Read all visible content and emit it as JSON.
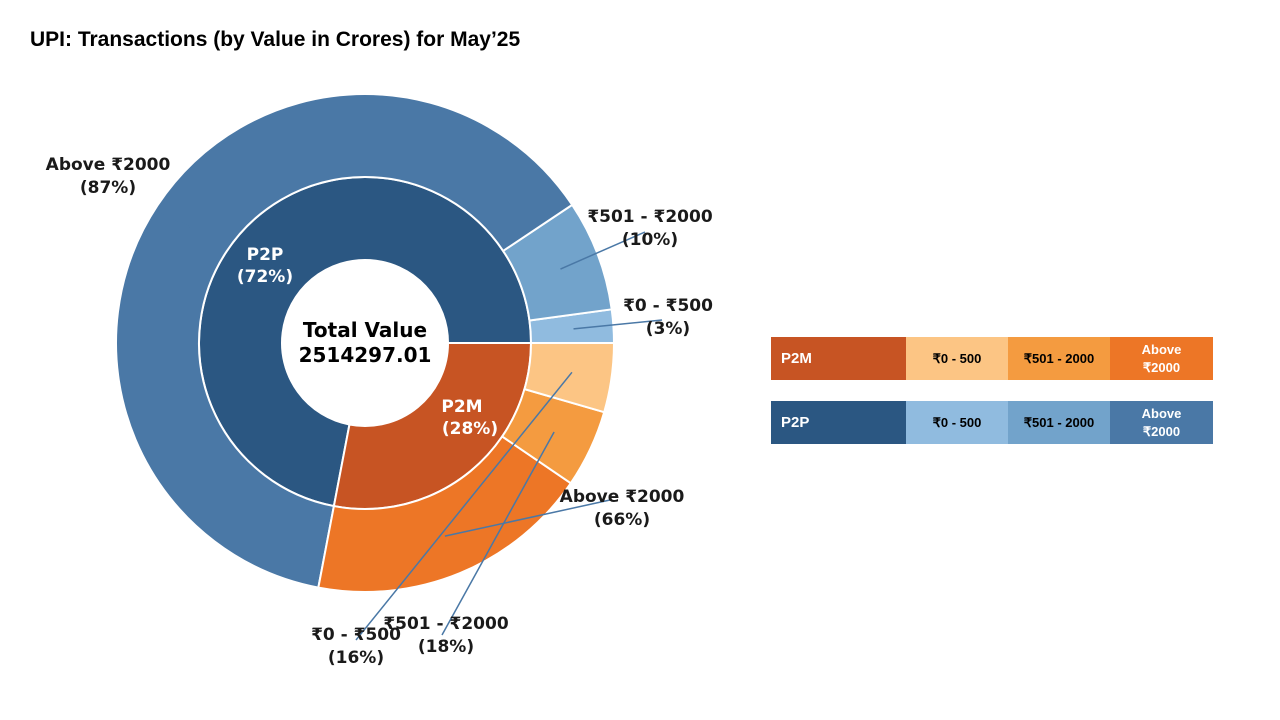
{
  "title": "UPI: Transactions (by Value in Crores) for May’25",
  "chart_data": {
    "type": "pie",
    "subtype": "nested-donut",
    "center": {
      "line1": "Total Value",
      "line2": "2514297.01"
    },
    "inner": [
      {
        "name": "P2P",
        "percent": 72,
        "label": "P2P",
        "pct_label": "(72%)",
        "color": "#2b5782"
      },
      {
        "name": "P2M",
        "percent": 28,
        "label": "P2M",
        "pct_label": "(28%)",
        "color": "#c75423"
      }
    ],
    "outer": [
      {
        "parent": "P2P",
        "name": "Above ₹2000",
        "percent": 87,
        "label": "Above ₹2000",
        "pct_label": "(87%)",
        "color": "#4a78a6"
      },
      {
        "parent": "P2P",
        "name": "₹501 - ₹2000",
        "percent": 10,
        "label": "₹501 - ₹2000",
        "pct_label": "(10%)",
        "color": "#72a3cb"
      },
      {
        "parent": "P2P",
        "name": "₹0 - ₹500",
        "percent": 3,
        "label": "₹0 - ₹500",
        "pct_label": "(3%)",
        "color": "#90bbdf"
      },
      {
        "parent": "P2M",
        "name": "Above ₹2000",
        "percent": 66,
        "label": "Above ₹2000",
        "pct_label": "(66%)",
        "color": "#ed7626"
      },
      {
        "parent": "P2M",
        "name": "₹501 - ₹2000",
        "percent": 18,
        "label": "₹501 - ₹2000",
        "pct_label": "(18%)",
        "color": "#f49b40"
      },
      {
        "parent": "P2M",
        "name": "₹0 - ₹500",
        "percent": 16,
        "label": "₹0 - ₹500",
        "pct_label": "(16%)",
        "color": "#fcc584"
      }
    ]
  },
  "legend": [
    {
      "name": "P2M",
      "color": "#c75423",
      "items": [
        {
          "label": "₹0 - 500",
          "color": "#fcc584",
          "text_color": "#000000"
        },
        {
          "label": "₹501 - 2000",
          "color": "#f49b40",
          "text_color": "#000000"
        },
        {
          "label": "Above ₹2000",
          "color": "#ed7626",
          "text_color": "#ffffff"
        }
      ]
    },
    {
      "name": "P2P",
      "color": "#2b5782",
      "items": [
        {
          "label": "₹0 - 500",
          "color": "#90bbdf",
          "text_color": "#000000"
        },
        {
          "label": "₹501 - 2000",
          "color": "#72a3cb",
          "text_color": "#000000"
        },
        {
          "label": "Above ₹2000",
          "color": "#4a78a6",
          "text_color": "#ffffff"
        }
      ]
    }
  ]
}
